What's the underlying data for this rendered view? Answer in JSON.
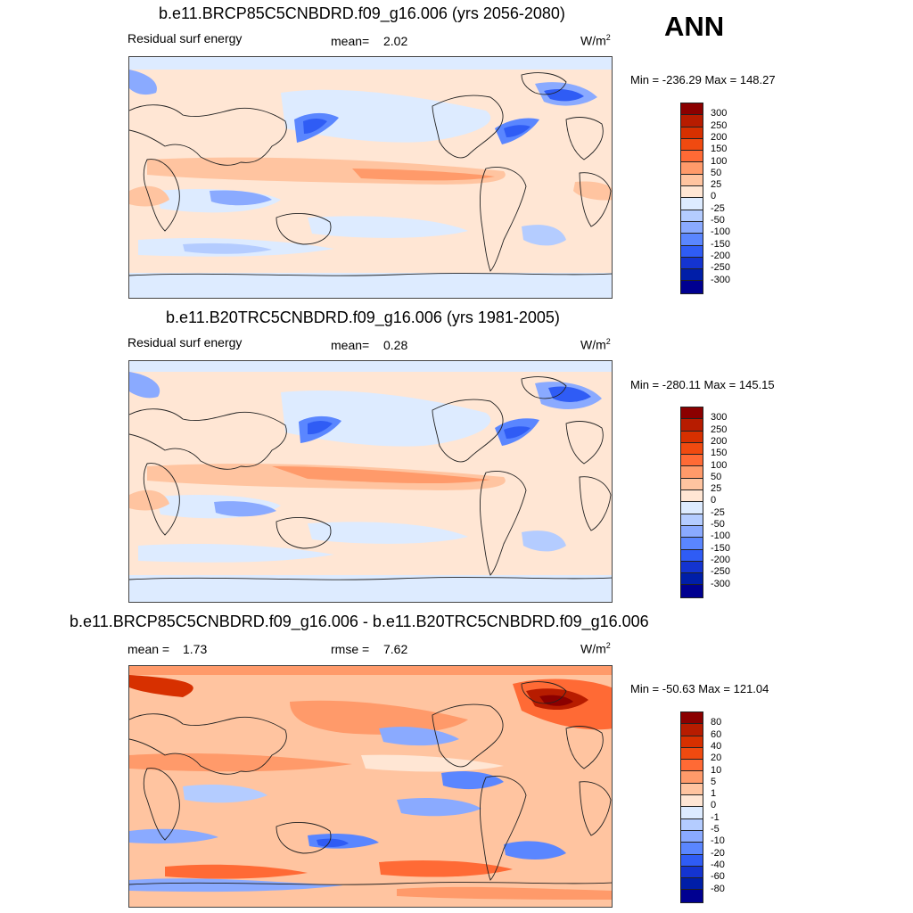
{
  "season": "ANN",
  "panels": [
    {
      "title": "b.e11.BRCP85C5CNBDRD.f09_g16.006 (yrs 2056-2080)",
      "left_label": "Residual surf energy",
      "stat_label": "mean=",
      "stat_value": "2.02",
      "units": "W/m",
      "units_sup": "2",
      "minmax": "Min = -236.29 Max = 148.27",
      "colorbar_labels": [
        "300",
        "250",
        "200",
        "150",
        "100",
        "50",
        "25",
        "0",
        "-25",
        "-50",
        "-100",
        "-150",
        "-200",
        "-250",
        "-300"
      ]
    },
    {
      "title": "b.e11.B20TRC5CNBDRD.f09_g16.006 (yrs 1981-2005)",
      "left_label": "Residual surf energy",
      "stat_label": "mean=",
      "stat_value": "0.28",
      "units": "W/m",
      "units_sup": "2",
      "minmax": "Min = -280.11 Max = 145.15",
      "colorbar_labels": [
        "300",
        "250",
        "200",
        "150",
        "100",
        "50",
        "25",
        "0",
        "-25",
        "-50",
        "-100",
        "-150",
        "-200",
        "-250",
        "-300"
      ]
    },
    {
      "title": "b.e11.BRCP85C5CNBDRD.f09_g16.006 - b.e11.B20TRC5CNBDRD.f09_g16.006",
      "mean_label": "mean =",
      "mean_value": "1.73",
      "rmse_label": "rmse =",
      "rmse_value": "7.62",
      "units": "W/m",
      "units_sup": "2",
      "minmax": "Min = -50.63 Max = 121.04",
      "colorbar_labels": [
        "80",
        "60",
        "40",
        "20",
        "10",
        "5",
        "1",
        "0",
        "-1",
        "-5",
        "-10",
        "-20",
        "-40",
        "-60",
        "-80"
      ]
    }
  ],
  "colors": {
    "colorbar": [
      "#8b0000",
      "#b71c00",
      "#d73000",
      "#f04a10",
      "#ff6a35",
      "#ff9a6a",
      "#ffc4a0",
      "#ffe6d4",
      "#ddebff",
      "#b4ccff",
      "#8aaaff",
      "#5a86ff",
      "#2f5cf5",
      "#1434d0",
      "#001ea8",
      "#000090"
    ]
  }
}
